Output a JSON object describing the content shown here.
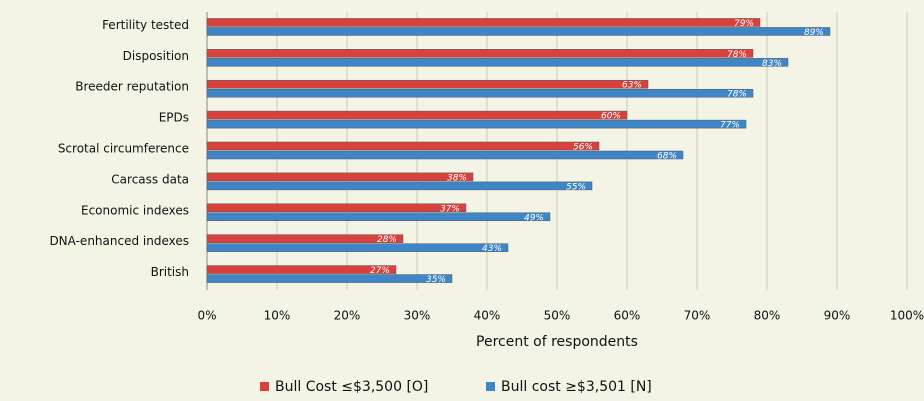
{
  "chart_data": {
    "type": "bar",
    "orientation": "horizontal",
    "categories": [
      "Fertility tested",
      "Disposition",
      "Breeder reputation",
      "EPDs",
      "Scrotal circumference",
      "Carcass data",
      "Economic indexes",
      "DNA-enhanced indexes",
      "British"
    ],
    "series": [
      {
        "name": "Bull Cost ≤$3,500 [O]",
        "color": "#d9413f",
        "values": [
          79,
          78,
          63,
          60,
          56,
          38,
          37,
          28,
          27
        ],
        "value_labels": [
          "79%",
          "78%",
          "63%",
          "60%",
          "56%",
          "38%",
          "37%",
          "28%",
          "27%"
        ]
      },
      {
        "name": "Bull cost ≥$3,501 [N]",
        "color": "#3f86c9",
        "values": [
          89,
          83,
          78,
          77,
          68,
          55,
          49,
          43,
          35
        ],
        "value_labels": [
          "89%",
          "83%",
          "78%",
          "77%",
          "68%",
          "55%",
          "49%",
          "43%",
          "35%"
        ]
      }
    ],
    "xlabel": "Percent of respondents",
    "xlim": [
      0,
      100
    ],
    "xticks": [
      {
        "value": 0,
        "label": "0%"
      },
      {
        "value": 10,
        "label": "10%"
      },
      {
        "value": 20,
        "label": "20%"
      },
      {
        "value": 30,
        "label": "30%"
      },
      {
        "value": 40,
        "label": "40%"
      },
      {
        "value": 50,
        "label": "50%"
      },
      {
        "value": 60,
        "label": "60%"
      },
      {
        "value": 70,
        "label": "70%"
      },
      {
        "value": 80,
        "label": "80%"
      },
      {
        "value": 90,
        "label": "90%"
      },
      {
        "value": 100,
        "label": "100%"
      }
    ],
    "grid": true,
    "legend": "bottom"
  }
}
